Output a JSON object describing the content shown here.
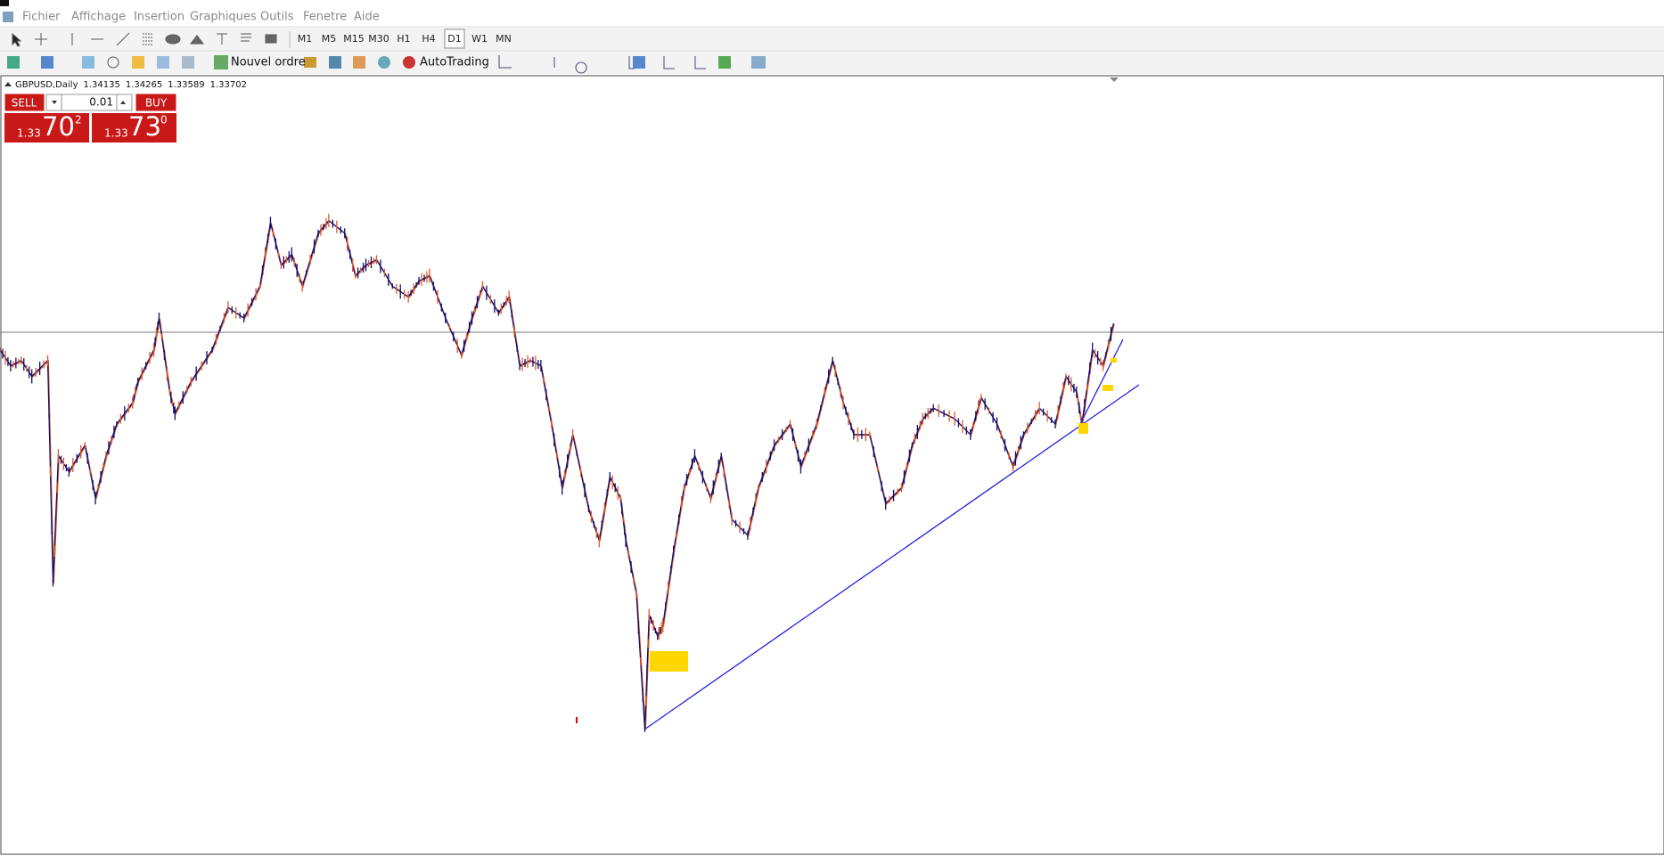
{
  "menu": [
    "Fichier",
    "Affichage",
    "Insertion",
    "Graphiques",
    "Outils",
    "Fenetre",
    "Aide"
  ],
  "timeframes": [
    "M1",
    "M5",
    "M15",
    "M30",
    "H1",
    "H4",
    "D1",
    "W1",
    "MN"
  ],
  "toolbar": {
    "new_order": "Nouvel ordre",
    "autotrading": "AutoTrading"
  },
  "chart": {
    "symbol": "GBPUSD,Daily",
    "ohlc": [
      "1.34135",
      "1.34265",
      "1.33589",
      "1.33702"
    ]
  },
  "trade_panel": {
    "sell": "SELL",
    "buy": "BUY",
    "lot": "0.01",
    "bid": {
      "big": "1.33",
      "pips": "70",
      "fraction": "2"
    },
    "ask": {
      "big": "1.33",
      "pips": "73",
      "fraction": "0"
    }
  }
}
